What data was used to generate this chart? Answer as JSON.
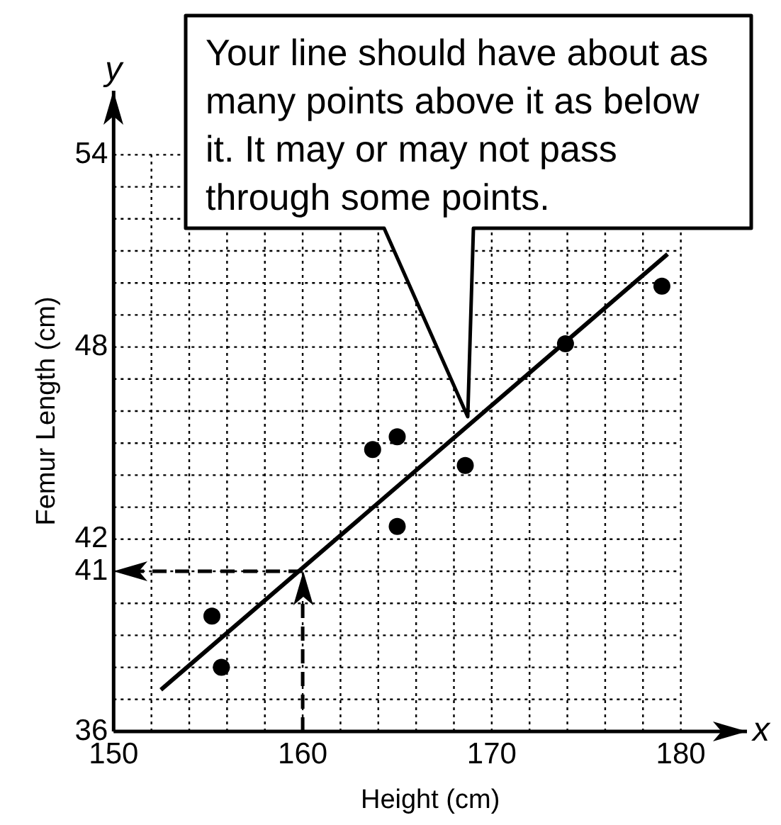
{
  "chart_data": {
    "type": "scatter",
    "xlabel": "Height (cm)",
    "ylabel": "Femur Length (cm)",
    "annotations": [
      "Your line should have about as many points above it as below it. It may or may not pass through some points.",
      "x",
      "y"
    ],
    "xlim": [
      150,
      183.5
    ],
    "ylim": [
      36,
      56
    ],
    "xticks": [
      150,
      {
        "value": 152,
        "label": null
      },
      {
        "value": 154,
        "label": null
      },
      {
        "value": 156,
        "label": null
      },
      {
        "value": 158,
        "label": null
      },
      160,
      {
        "value": 162,
        "label": null
      },
      {
        "value": 164,
        "label": null
      },
      {
        "value": 166,
        "label": null
      },
      {
        "value": 168,
        "label": null
      },
      170,
      {
        "value": 172,
        "label": null
      },
      {
        "value": 174,
        "label": null
      },
      {
        "value": 176,
        "label": null
      },
      {
        "value": 178,
        "label": null
      },
      180
    ],
    "yticks": [
      36,
      {
        "value": 37,
        "label": null
      },
      {
        "value": 38,
        "label": null
      },
      {
        "value": 39,
        "label": null
      },
      {
        "value": 40,
        "label": null
      },
      41,
      42,
      {
        "value": 43,
        "label": null
      },
      {
        "value": 44,
        "label": null
      },
      {
        "value": 45,
        "label": null
      },
      {
        "value": 46,
        "label": null
      },
      {
        "value": 47,
        "label": null
      },
      48,
      {
        "value": 49,
        "label": null
      },
      {
        "value": 50,
        "label": null
      },
      {
        "value": 51,
        "label": null
      },
      {
        "value": 52,
        "label": null
      },
      {
        "value": 53,
        "label": null
      },
      54
    ],
    "grid": true,
    "legend": false,
    "marker": "circle",
    "series": [
      {
        "color": "#000000",
        "x": [
          155.2,
          155.7,
          163.7,
          165.0,
          168.6,
          165.0,
          173.9,
          179.0
        ],
        "values": [
          39.6,
          38.0,
          44.8,
          45.2,
          44.3,
          42.4,
          48.1,
          49.9
        ]
      },
      {
        "type": "line",
        "marker": "none",
        "color": "#000000",
        "x": [
          152.5,
          179.3
        ],
        "values": [
          37.3,
          50.9
        ]
      }
    ],
    "ref_lines": [
      {
        "axis": "x",
        "value": 160,
        "line_style": "dashed"
      },
      {
        "axis": "y",
        "value": 41,
        "line_style": "dashed"
      }
    ]
  }
}
